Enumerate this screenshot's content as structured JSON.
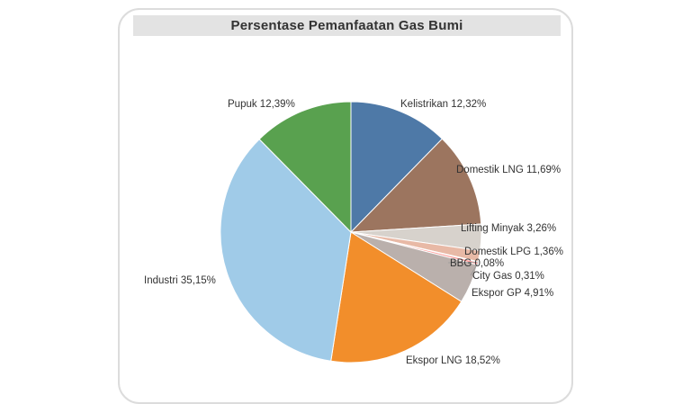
{
  "chart_data": {
    "type": "pie",
    "title": "Persentase Pemanfaatan Gas Bumi",
    "slices": [
      {
        "label": "Kelistrikan",
        "value": 12.32,
        "display": "12,32%",
        "color": "#4e79a7"
      },
      {
        "label": "Domestik LNG",
        "value": 11.69,
        "display": "11,69%",
        "color": "#9c755f"
      },
      {
        "label": "Lifting Minyak",
        "value": 3.26,
        "display": "3,26%",
        "color": "#d7d2cc"
      },
      {
        "label": "Domestik LPG",
        "value": 1.36,
        "display": "1,36%",
        "color": "#e8b9a6"
      },
      {
        "label": "BBG",
        "value": 0.08,
        "display": "0,08%",
        "color": "#c8102e"
      },
      {
        "label": "City Gas",
        "value": 0.31,
        "display": "0,31%",
        "color": "#ff9d9a"
      },
      {
        "label": "Ekspor GP",
        "value": 4.91,
        "display": "4,91%",
        "color": "#bab0ac"
      },
      {
        "label": "Ekspor LNG",
        "value": 18.52,
        "display": "18,52%",
        "color": "#f28e2b"
      },
      {
        "label": "Industri",
        "value": 35.15,
        "display": "35,15%",
        "color": "#a0cbe8"
      },
      {
        "label": "Pupuk",
        "value": 12.39,
        "display": "12,39%",
        "color": "#59a14f"
      }
    ]
  }
}
